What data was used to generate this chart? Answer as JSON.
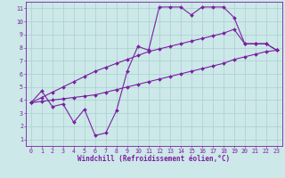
{
  "line1_x": [
    0,
    1,
    2,
    3,
    4,
    5,
    6,
    7,
    8,
    9,
    10,
    11,
    12,
    13,
    14,
    15,
    16,
    17,
    18,
    19,
    20,
    21,
    22,
    23
  ],
  "line1_y": [
    3.8,
    4.7,
    3.5,
    3.7,
    2.3,
    3.3,
    1.3,
    1.5,
    3.2,
    6.2,
    8.1,
    7.8,
    11.1,
    11.1,
    11.1,
    10.5,
    11.1,
    11.1,
    11.1,
    10.3,
    8.3,
    8.3,
    8.3,
    7.8
  ],
  "line2_x": [
    0,
    1,
    2,
    3,
    4,
    5,
    6,
    7,
    8,
    9,
    10,
    11,
    12,
    13,
    14,
    15,
    16,
    17,
    18,
    19,
    20,
    21,
    22,
    23
  ],
  "line2_y": [
    3.8,
    4.2,
    4.6,
    5.0,
    5.4,
    5.8,
    6.2,
    6.5,
    6.8,
    7.1,
    7.4,
    7.7,
    7.9,
    8.1,
    8.3,
    8.5,
    8.7,
    8.9,
    9.1,
    9.4,
    8.3,
    8.3,
    8.3,
    7.8
  ],
  "line3_x": [
    0,
    1,
    2,
    3,
    4,
    5,
    6,
    7,
    8,
    9,
    10,
    11,
    12,
    13,
    14,
    15,
    16,
    17,
    18,
    19,
    20,
    21,
    22,
    23
  ],
  "line3_y": [
    3.8,
    3.9,
    4.0,
    4.1,
    4.2,
    4.3,
    4.4,
    4.6,
    4.8,
    5.0,
    5.2,
    5.4,
    5.6,
    5.8,
    6.0,
    6.2,
    6.4,
    6.6,
    6.8,
    7.1,
    7.3,
    7.5,
    7.7,
    7.8
  ],
  "color": "#7b1fa2",
  "bg_color": "#cce8e8",
  "grid_color": "#aacfcf",
  "xlabel": "Windchill (Refroidissement éolien,°C)",
  "xlim": [
    -0.5,
    23.5
  ],
  "ylim": [
    0.5,
    11.5
  ],
  "xticks": [
    0,
    1,
    2,
    3,
    4,
    5,
    6,
    7,
    8,
    9,
    10,
    11,
    12,
    13,
    14,
    15,
    16,
    17,
    18,
    19,
    20,
    21,
    22,
    23
  ],
  "yticks": [
    1,
    2,
    3,
    4,
    5,
    6,
    7,
    8,
    9,
    10,
    11
  ],
  "marker": "D",
  "markersize": 2.0,
  "linewidth": 0.8,
  "xlabel_fontsize": 5.5,
  "tick_fontsize": 4.8
}
